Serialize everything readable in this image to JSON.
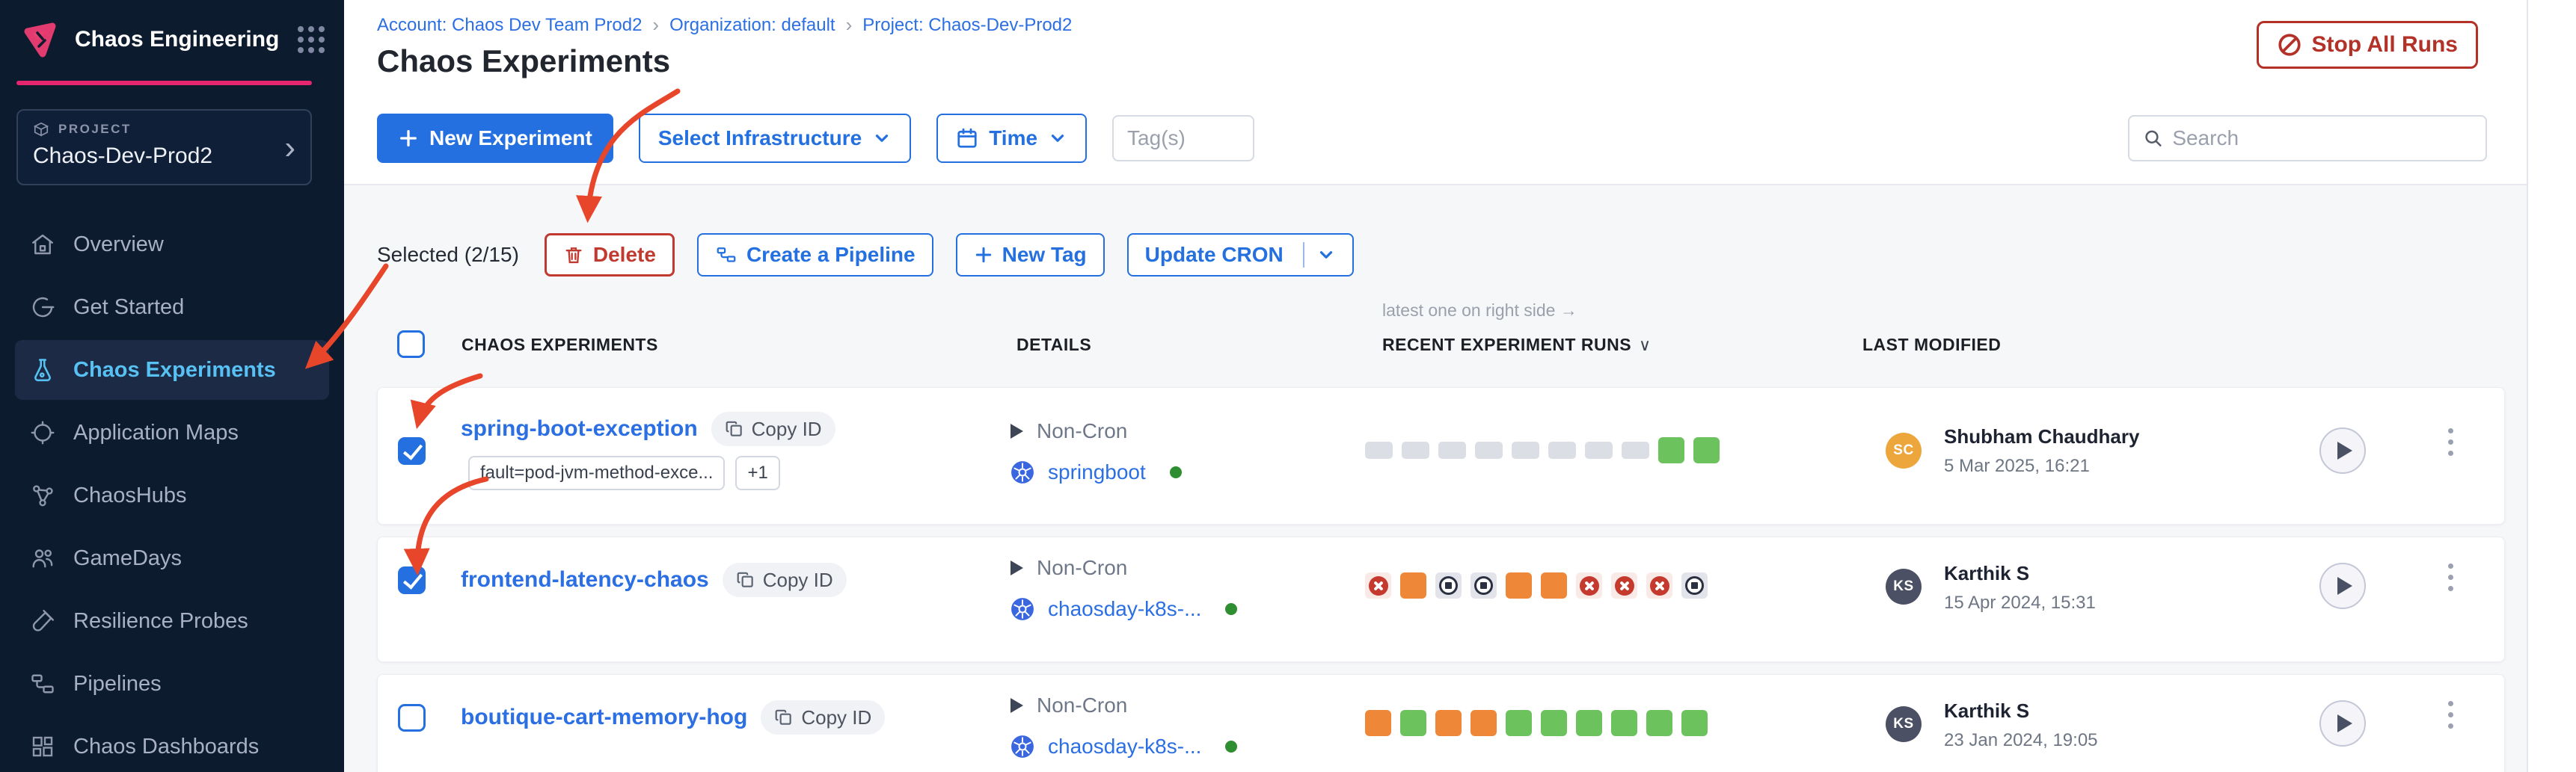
{
  "app": {
    "name": "Chaos Engineering"
  },
  "sidebar": {
    "project_label": "PROJECT",
    "project_name": "Chaos-Dev-Prod2",
    "items": [
      {
        "label": "Overview",
        "icon": "home-icon"
      },
      {
        "label": "Get Started",
        "icon": "get-started-icon"
      },
      {
        "label": "Chaos Experiments",
        "icon": "flask-icon",
        "active": true
      },
      {
        "label": "Application Maps",
        "icon": "crosshair-icon"
      },
      {
        "label": "ChaosHubs",
        "icon": "network-icon"
      },
      {
        "label": "GameDays",
        "icon": "people-icon"
      },
      {
        "label": "Resilience Probes",
        "icon": "test-tube-icon"
      },
      {
        "label": "Pipelines",
        "icon": "pipeline-icon"
      },
      {
        "label": "Chaos Dashboards",
        "icon": "dashboard-icon"
      }
    ]
  },
  "header": {
    "breadcrumb": [
      {
        "label": "Account: Chaos Dev Team Prod2"
      },
      {
        "label": "Organization: default"
      },
      {
        "label": "Project: Chaos-Dev-Prod2"
      }
    ],
    "title": "Chaos Experiments",
    "stop_all_runs": "Stop All Runs"
  },
  "toolbar": {
    "new_experiment": "New Experiment",
    "select_infrastructure": "Select Infrastructure",
    "time": "Time",
    "tags_placeholder": "Tag(s)",
    "search_placeholder": "Search"
  },
  "selection_bar": {
    "selected": "Selected (2/15)",
    "delete": "Delete",
    "create_pipeline": "Create a Pipeline",
    "new_tag": "New Tag",
    "update_cron": "Update CRON"
  },
  "table": {
    "note": "latest one on right side →",
    "headers": {
      "experiments": "CHAOS EXPERIMENTS",
      "details": "DETAILS",
      "runs": "RECENT EXPERIMENT RUNS",
      "modified": "LAST MODIFIED"
    },
    "copy_id": "Copy ID",
    "rows": [
      {
        "name": "spring-boot-exception",
        "checkbox": "checked",
        "tags": [
          "fault=pod-jvm-method-exce...",
          "+1"
        ],
        "schedule": "Non-Cron",
        "infra": "springboot",
        "runs": [
          "gray",
          "gray",
          "gray",
          "gray",
          "gray",
          "gray",
          "gray",
          "gray",
          "green",
          "green"
        ],
        "modified": {
          "initials": "SC",
          "name": "Shubham Chaudhary",
          "date": "5 Mar 2025, 16:21",
          "avatar": "avatar-orange"
        }
      },
      {
        "name": "frontend-latency-chaos",
        "checkbox": "checked",
        "tags": [],
        "schedule": "Non-Cron",
        "infra": "chaosday-k8s-...",
        "runs": [
          "fail",
          "orange",
          "stop",
          "stop",
          "orange",
          "orange",
          "fail",
          "fail",
          "fail",
          "stop"
        ],
        "modified": {
          "initials": "KS",
          "name": "Karthik S",
          "date": "15 Apr 2024, 15:31",
          "avatar": "avatar-slate"
        }
      },
      {
        "name": "boutique-cart-memory-hog",
        "checkbox": "unchecked",
        "tags": [],
        "schedule": "Non-Cron",
        "infra": "chaosday-k8s-...",
        "runs": [
          "orange",
          "green",
          "orange",
          "orange",
          "green",
          "green",
          "green",
          "green",
          "green",
          "green"
        ],
        "modified": {
          "initials": "KS",
          "name": "Karthik S",
          "date": "23 Jan 2024, 19:05",
          "avatar": "avatar-slate"
        }
      }
    ]
  },
  "icons": {
    "breadcrumb_separator": "›",
    "chevron_right": "›"
  },
  "colors": {
    "accent_pink": "#e5266e",
    "primary_blue": "#2470e0",
    "danger_red": "#c03a30",
    "annotation_red": "#e8462b",
    "run_green": "#6cc35e",
    "run_orange": "#ee8737",
    "run_gray": "#dcdee6",
    "sidebar_bg": "#0d1b2f",
    "active_item_blue": "#57c1f3"
  }
}
